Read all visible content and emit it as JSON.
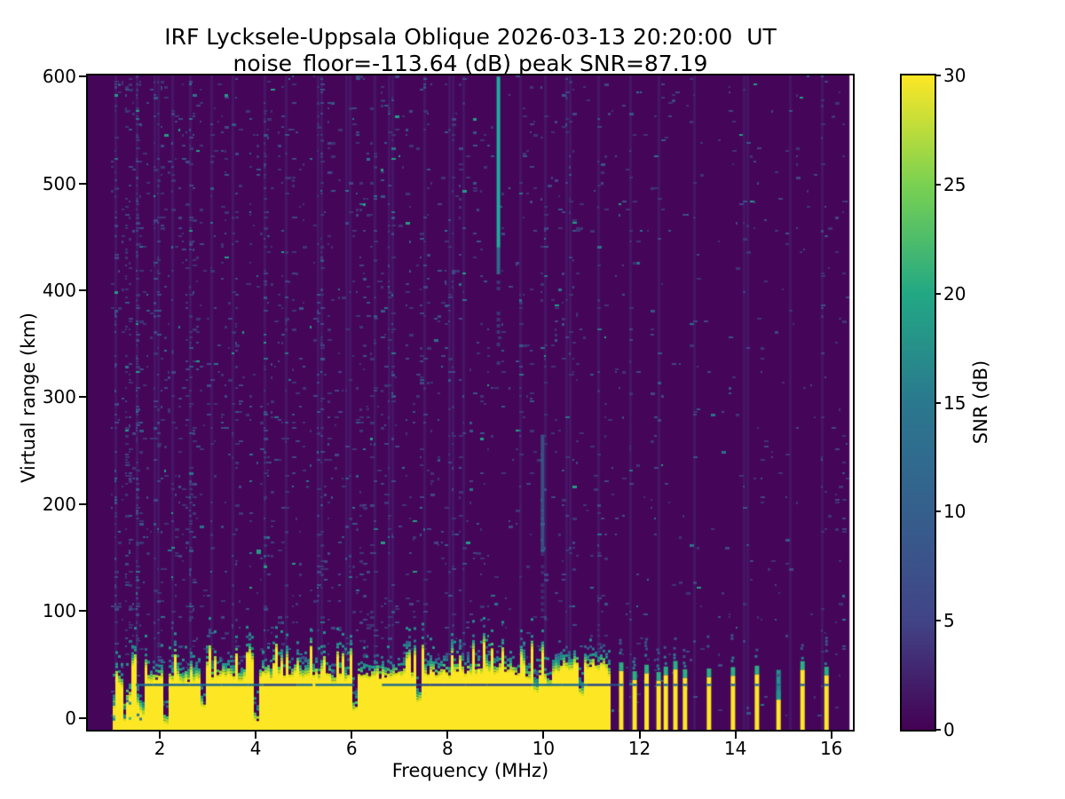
{
  "chart_data": {
    "type": "heatmap",
    "title": "IRF Lycksele-Uppsala Oblique 2026-03-13 20:20:00  UT",
    "subtitle": "noise_floor=-113.64 (dB) peak SNR=87.19",
    "station": "IRF Lycksele-Uppsala Oblique",
    "timestamp_ut": "2026-03-13 20:20:00",
    "noise_floor_db": -113.64,
    "peak_snr_db": 87.19,
    "xlabel": "Frequency (MHz)",
    "ylabel": "Virtual range (km)",
    "colorbar_label": "SNR (dB)",
    "xlim": [
      0.5,
      16.45
    ],
    "ylim": [
      -11,
      601
    ],
    "clim": [
      0,
      30
    ],
    "x_ticks": [
      2,
      4,
      6,
      8,
      10,
      12,
      14,
      16
    ],
    "y_ticks": [
      0,
      100,
      200,
      300,
      400,
      500,
      600
    ],
    "colorbar_ticks": [
      0,
      5,
      10,
      15,
      20,
      25,
      30
    ],
    "colormap": "viridis",
    "colormap_stops": [
      [
        "#fde725",
        30
      ],
      [
        "#7ad151",
        25
      ],
      [
        "#22a884",
        20
      ],
      [
        "#2a788e",
        15
      ],
      [
        "#355f8d",
        10
      ],
      [
        "#414487",
        5
      ],
      [
        "#440154",
        0
      ]
    ],
    "grid": false,
    "legend": "colorbar-right",
    "colors": {
      "background": "#45065a",
      "band_yellow": "#fde725",
      "transition": [
        "#d8e219",
        "#a0da39",
        "#4ac16d",
        "#1fa187",
        "#21918c",
        "#2a788e",
        "#355f8d",
        "#3b528b"
      ],
      "horizontal_line": "#1f6e8c",
      "stripe_cap": "#2ab07f"
    },
    "features": {
      "data_freq_range_mhz": [
        0.98,
        16.35
      ],
      "echo_band": {
        "freq_range": [
          1.02,
          11.38
        ],
        "top_profile_km": [
          [
            1.05,
            22
          ],
          [
            1.3,
            30
          ],
          [
            1.7,
            36
          ],
          [
            2.2,
            38
          ],
          [
            2.6,
            34
          ],
          [
            3.2,
            40
          ],
          [
            3.8,
            37
          ],
          [
            4.3,
            40
          ],
          [
            5.0,
            41
          ],
          [
            5.6,
            36
          ],
          [
            6.2,
            38
          ],
          [
            7.0,
            40
          ],
          [
            7.6,
            42
          ],
          [
            8.2,
            40
          ],
          [
            8.8,
            45
          ],
          [
            9.4,
            41
          ],
          [
            9.9,
            38
          ],
          [
            10.3,
            46
          ],
          [
            10.8,
            50
          ],
          [
            11.2,
            48
          ],
          [
            11.38,
            40
          ]
        ],
        "spike_max_km": 65,
        "transition_km": 20,
        "patchy_below_mhz": 1.75,
        "notches_mhz": [
          [
            1.35,
            -6
          ],
          [
            1.62,
            4
          ],
          [
            2.12,
            -6
          ],
          [
            2.87,
            12
          ],
          [
            3.97,
            -4
          ],
          [
            6.05,
            8
          ],
          [
            7.35,
            16
          ],
          [
            9.82,
            24
          ],
          [
            10.1,
            30
          ],
          [
            10.75,
            22
          ]
        ],
        "horizontal_line": {
          "km": 32,
          "freq_range": [
            1.5,
            11.35
          ]
        }
      },
      "stripes": {
        "freqs_mhz": [
          11.62,
          11.9,
          12.15,
          12.4,
          12.55,
          12.75,
          12.95,
          13.45,
          13.95,
          14.45,
          14.9,
          15.4,
          15.9
        ],
        "typical_top_km": 40,
        "weak_mhz": [
          14.9
        ]
      },
      "vertical_lines": [
        {
          "freq_mhz": 9.05,
          "segments": [
            {
              "km": [
                600,
                440
              ],
              "color": "#1fae9b",
              "alpha": 1,
              "dashed": false
            },
            {
              "km": [
                440,
                415
              ],
              "color": "#2a788e",
              "alpha": 0.9,
              "dashed": false
            },
            {
              "km": [
                415,
                330
              ],
              "color": "#31688e",
              "alpha": 0.5,
              "dashed": true
            }
          ]
        },
        {
          "freq_mhz": 9.97,
          "segments": [
            {
              "km": [
                265,
                155
              ],
              "color": "#31688e",
              "alpha": 0.75,
              "dashed": false
            },
            {
              "km": [
                155,
                95
              ],
              "color": "#3b528b",
              "alpha": 0.45,
              "dashed": true
            }
          ]
        }
      ],
      "noise": {
        "dense_freqs_mhz": [
          1.05,
          1.5,
          1.9,
          2.25,
          2.6,
          3.05,
          3.5,
          4.15,
          4.6,
          5.3,
          5.9,
          6.45,
          6.8,
          7.5,
          8.05,
          8.3,
          9.5,
          10.0,
          10.5,
          11.1,
          11.8,
          12.4,
          13.1,
          14.2,
          15.1,
          15.8
        ],
        "density_envelope": [
          [
            0.98,
            0.5
          ],
          [
            3,
            0.33
          ],
          [
            6,
            0.22
          ],
          [
            9,
            0.16
          ],
          [
            11.5,
            0.12
          ],
          [
            16.4,
            0.09
          ]
        ]
      }
    }
  }
}
